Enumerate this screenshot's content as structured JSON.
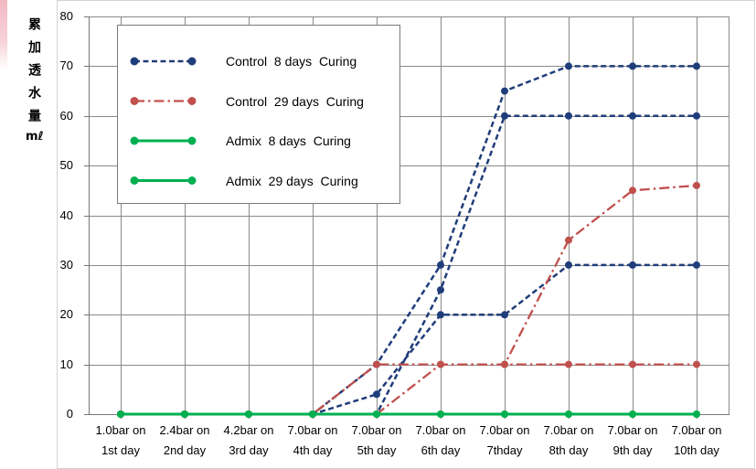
{
  "chart_data": {
    "type": "line",
    "ylabel": "累加透水量",
    "yunit": "mℓ",
    "categories": [
      "1.0bar on\n1st day",
      "2.4bar on\n2nd day",
      "4.2bar on\n3rd day",
      "7.0bar on\n4th day",
      "7.0bar on\n5th day",
      "7.0bar on\n6th day",
      "7.0bar on\n7thday",
      "7.0bar on\n8th day",
      "7.0bar on\n9th day",
      "7.0bar on\n10th day"
    ],
    "ylim": [
      0,
      80
    ],
    "yticks": [
      0,
      10,
      20,
      30,
      40,
      50,
      60,
      70,
      80
    ],
    "grid": true,
    "legend": "top-left",
    "series": [
      {
        "name": "Control  8 days  Curing",
        "color": "#1F3D7A",
        "line_style": "dashed",
        "marker": "circle",
        "values": [
          [
            0,
            0,
            0,
            0,
            10,
            30,
            65,
            70,
            70,
            70
          ],
          [
            0,
            0,
            0,
            0,
            4,
            20,
            20,
            30,
            30,
            30
          ],
          [
            0,
            0,
            0,
            0,
            0,
            25,
            60,
            60,
            60,
            60
          ]
        ]
      },
      {
        "name": "Control  29 days  Curing",
        "color": "#C0504D",
        "line_style": "dash-dot",
        "marker": "circle",
        "values": [
          [
            0,
            0,
            0,
            0,
            10,
            10,
            10,
            10,
            10,
            10
          ],
          [
            0,
            0,
            0,
            0,
            0,
            10,
            10,
            35,
            45,
            46
          ]
        ]
      },
      {
        "name": "Admix  8 days  Curing",
        "color": "#00B050",
        "line_style": "solid",
        "marker": "circle",
        "values": [
          [
            0,
            0,
            0,
            0,
            0,
            0,
            0,
            0,
            0,
            0
          ]
        ]
      },
      {
        "name": "Admix  29 days  Curing",
        "color": "#00B050",
        "line_style": "solid",
        "marker": "circle",
        "values": [
          [
            0,
            0,
            0,
            0,
            0,
            0,
            0,
            0,
            0,
            0
          ]
        ]
      }
    ]
  }
}
